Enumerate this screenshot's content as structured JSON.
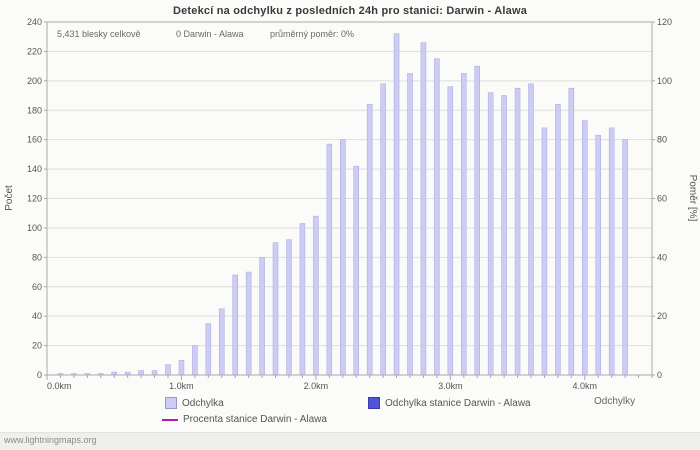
{
  "page": {
    "title": "Detekcí na odchylku z posledních 24h pro stanici: Darwin - Alawa",
    "footer": "www.lightningmaps.org"
  },
  "annotations": {
    "total": "5,431 blesky celkově",
    "station": "0 Darwin - Alawa",
    "ratio": "průměrný poměr: 0%"
  },
  "axes": {
    "left_label": "Počet",
    "right_label": "Poměr [%]",
    "x_label": "Odchylky",
    "left_ticks": [
      0,
      20,
      40,
      60,
      80,
      100,
      120,
      140,
      160,
      180,
      200,
      220,
      240
    ],
    "right_ticks": [
      0,
      20,
      40,
      60,
      80,
      100,
      120
    ],
    "x_ticks": [
      {
        "km": 0,
        "label": "0.0km"
      },
      {
        "km": 1,
        "label": "1.0km"
      },
      {
        "km": 2,
        "label": "2.0km"
      },
      {
        "km": 3,
        "label": "3.0km"
      },
      {
        "km": 4,
        "label": "4.0km"
      }
    ]
  },
  "legend": {
    "deviation_label": "Odchylka",
    "station_label": "Odchylka stanice Darwin - Alawa",
    "percent_label": "Procenta stanice Darwin - Alawa",
    "deviation_color": "#ccccf4",
    "station_color": "#5353d6",
    "percent_color": "#b517b5"
  },
  "chart_data": {
    "type": "bar",
    "title": "Detekcí na odchylku z posledních 24h pro stanici: Darwin - Alawa",
    "xlabel": "Odchylky",
    "ylabel_left": "Počet",
    "ylabel_right": "Poměr [%]",
    "x_unit": "km",
    "x_start": 0.1,
    "x_step": 0.1,
    "x_plot_max": 4.5,
    "ylim_left": [
      0,
      240
    ],
    "ylim_right": [
      0,
      120
    ],
    "grid": true,
    "bar_color": "#ccccf4",
    "bar_edge_color": "#a8a8dd",
    "series": [
      {
        "name": "Odchylka",
        "type": "bar",
        "color": "#ccccf4",
        "values": [
          1,
          1,
          1,
          1,
          2,
          2,
          3,
          3,
          7,
          10,
          20,
          35,
          45,
          68,
          70,
          80,
          90,
          92,
          103,
          108,
          157,
          160,
          142,
          184,
          198,
          232,
          205,
          226,
          215,
          196,
          205,
          210,
          192,
          190,
          195,
          198,
          168,
          184,
          195,
          173,
          163,
          168,
          160
        ]
      },
      {
        "name": "Odchylka stanice Darwin - Alawa",
        "type": "bar",
        "color": "#5353d6",
        "values_constant": 0
      },
      {
        "name": "Procenta stanice Darwin - Alawa",
        "type": "line",
        "color": "#b517b5",
        "values_constant_percent": 0
      }
    ],
    "annotations": {
      "total_strikes": "5,431 blesky celkově",
      "station_strikes": "0 Darwin - Alawa",
      "average_ratio": "průměrný poměr: 0%"
    }
  }
}
